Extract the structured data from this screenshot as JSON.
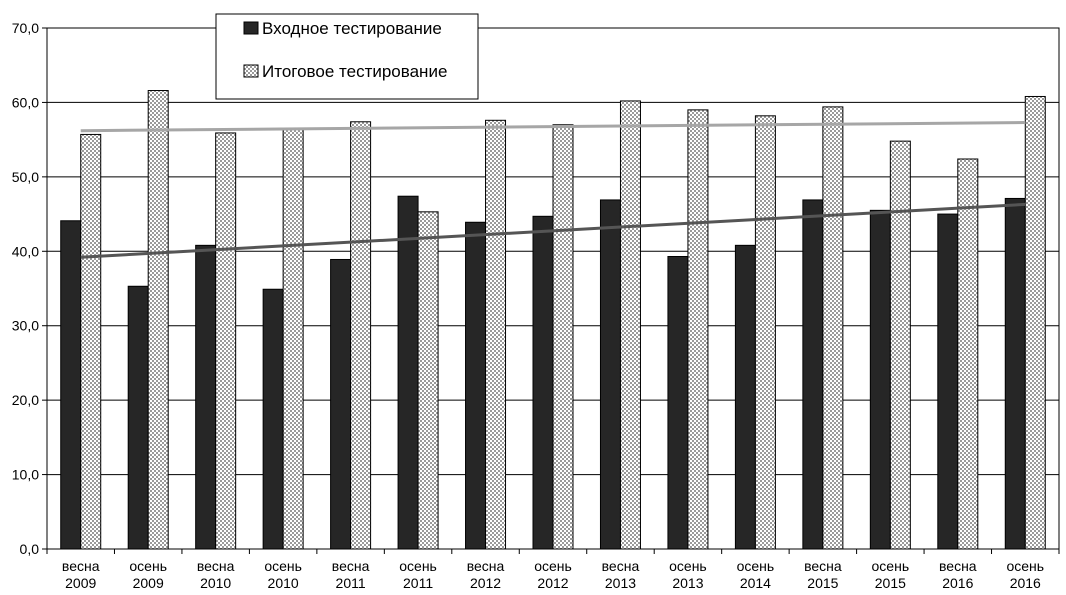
{
  "chart_data": {
    "type": "bar",
    "categories": [
      [
        "весна",
        "2009"
      ],
      [
        "осень",
        "2009"
      ],
      [
        "весна",
        "2010"
      ],
      [
        "осень",
        "2010"
      ],
      [
        "весна",
        "2011"
      ],
      [
        "осень",
        "2011"
      ],
      [
        "весна",
        "2012"
      ],
      [
        "осень",
        "2012"
      ],
      [
        "весна",
        "2013"
      ],
      [
        "осень",
        "2013"
      ],
      [
        "осень",
        "2014"
      ],
      [
        "весна",
        "2015"
      ],
      [
        "осень",
        "2015"
      ],
      [
        "весна",
        "2016"
      ],
      [
        "осень",
        "2016"
      ]
    ],
    "series": [
      {
        "name": "Входное тестирование",
        "color": "#262626",
        "pattern": "solid-dark",
        "values": [
          44.1,
          35.3,
          40.8,
          34.9,
          38.9,
          47.4,
          43.9,
          44.7,
          46.9,
          39.3,
          40.8,
          46.9,
          45.5,
          45.0,
          47.1
        ],
        "trendline": {
          "type": "linear",
          "color": "#555555",
          "start": 39.2,
          "end": 46.3
        }
      },
      {
        "name": "Итоговое тестирование",
        "color": "#ffffff",
        "pattern": "checker-light",
        "values": [
          55.7,
          61.6,
          55.9,
          56.4,
          57.4,
          45.3,
          57.6,
          57.0,
          60.2,
          59.0,
          58.2,
          59.4,
          54.8,
          52.4,
          60.8
        ],
        "trendline": {
          "type": "linear",
          "color": "#a6a6a6",
          "start": 56.2,
          "end": 57.3
        }
      }
    ],
    "ylim": [
      0,
      70
    ],
    "yticks": [
      "0,0",
      "10,0",
      "20,0",
      "30,0",
      "40,0",
      "50,0",
      "60,0",
      "70,0"
    ],
    "grid": true,
    "legend_position": "top-left",
    "title": "",
    "xlabel": "",
    "ylabel": ""
  }
}
